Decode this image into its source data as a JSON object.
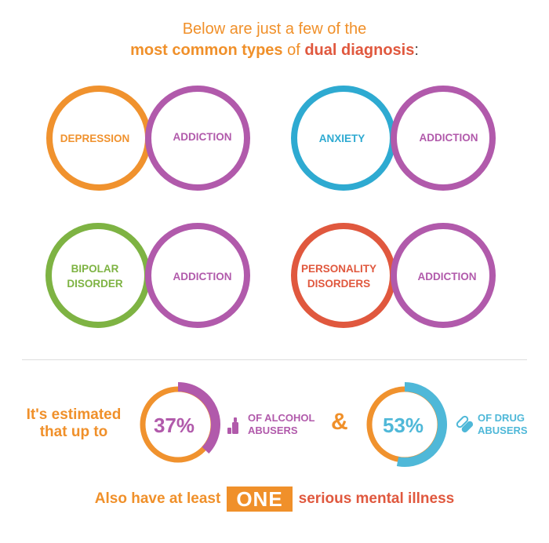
{
  "header": {
    "line1": "Below are just a few of the",
    "line2_part1": "most common types",
    "line2_part2": " of ",
    "line2_part3": "dual diagnosis",
    "line2_part4": ":"
  },
  "pairs": [
    {
      "left_lines": [
        "DEPRESSION"
      ],
      "right_lines": [
        "ADDICTION"
      ],
      "left_color": "#f0922e",
      "right_color": "#b15aab",
      "overlap_color": "#d57a74"
    },
    {
      "left_lines": [
        "ANXIETY"
      ],
      "right_lines": [
        "ADDICTION"
      ],
      "left_color": "#2eaad1",
      "right_color": "#b15aab",
      "overlap_color": "#8a86c2"
    },
    {
      "left_lines": [
        "BIPOLAR",
        "DISORDER"
      ],
      "right_lines": [
        "ADDICTION"
      ],
      "left_color": "#7eb343",
      "right_color": "#b15aab",
      "overlap_color": "#8a9a7e"
    },
    {
      "left_lines": [
        "PERSONALITY",
        "DISORDERS"
      ],
      "right_lines": [
        "ADDICTION"
      ],
      "left_color": "#e0583e",
      "right_color": "#b15aab",
      "overlap_color": "#c7775a"
    }
  ],
  "stats": {
    "intro": "It's estimated that up to",
    "alcohol": {
      "percent": 37,
      "value_text": "37%",
      "label_line1": "OF ALCOHOL",
      "label_line2": "ABUSERS",
      "color": "#b15aab",
      "track_color": "#f0922e",
      "icon": "alcohol-bottle-icon"
    },
    "ampersand": "&",
    "drug": {
      "percent": 53,
      "value_text": "53%",
      "label_line1": "OF DRUG",
      "label_line2": "ABUSERS",
      "color": "#4fb8d8",
      "track_color": "#f0922e",
      "icon": "pill-capsule-icon"
    }
  },
  "footer": {
    "pre": "Also have at least",
    "emphasis": "ONE",
    "post": "serious mental illness"
  },
  "colors": {
    "orange": "#f0902a",
    "red": "#e0583e",
    "purple": "#b15aab",
    "blue": "#4fb8d8"
  }
}
